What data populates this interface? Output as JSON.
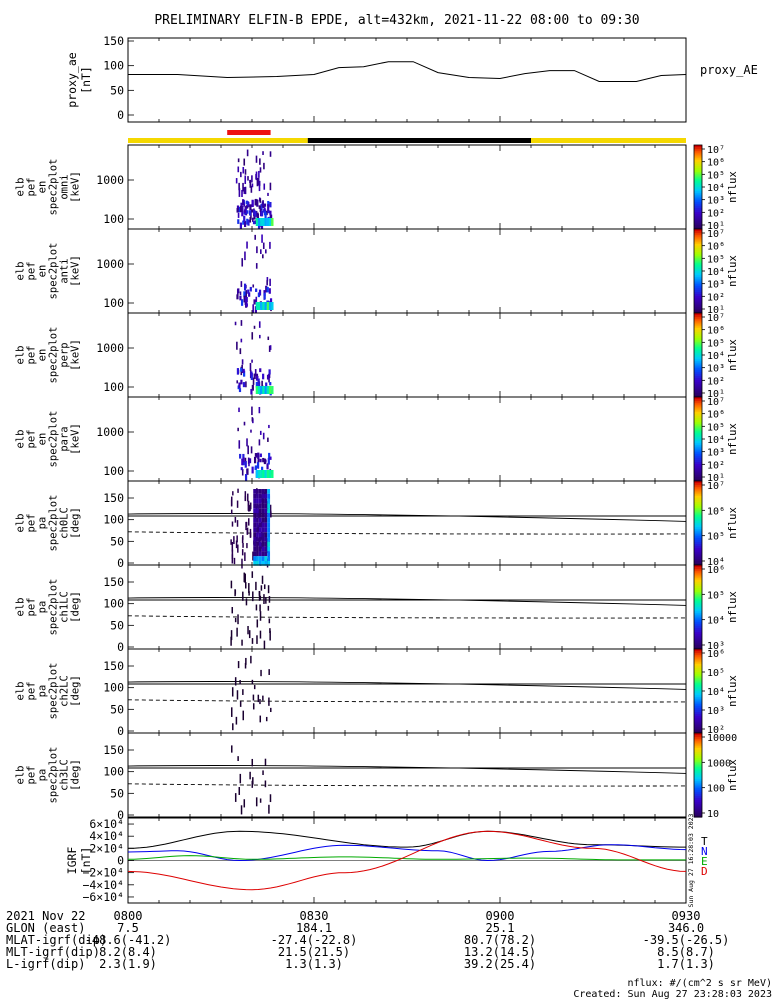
{
  "title": "PRELIMINARY ELFIN-B EPDE, alt=432km, 2021-11-22 08:00 to 09:30",
  "colors": {
    "sunlit": "#f5d800",
    "shadow": "#000000",
    "science_zone": "#ee1111",
    "bx": "#000000",
    "by": "#0000ee",
    "bz": "#00aa00",
    "bt": "#000000",
    "bd": "#dd0000"
  },
  "chart_data": [
    {
      "id": "proxy_ae",
      "type": "line",
      "ylabel": "proxy_ae [nT]",
      "legend": "proxy_AE",
      "ylim": [
        0,
        150
      ],
      "yticks": [
        "150",
        "100",
        "50",
        "0"
      ],
      "x_min": [
        0,
        8,
        16,
        24,
        30,
        34,
        38,
        42,
        46,
        50,
        55,
        60,
        64,
        68,
        72,
        76,
        82,
        86,
        90
      ],
      "y": [
        82,
        82,
        76,
        78,
        82,
        96,
        98,
        108,
        108,
        86,
        76,
        74,
        84,
        90,
        90,
        68,
        68,
        80,
        82
      ]
    },
    {
      "id": "orbit_bar",
      "type": "bar",
      "segments": [
        {
          "kind": "sunlit",
          "start_min": 0,
          "end_min": 29
        },
        {
          "kind": "shadow",
          "start_min": 29,
          "end_min": 65
        },
        {
          "kind": "sunlit",
          "start_min": 65,
          "end_min": 90
        }
      ],
      "science_zone": {
        "start_min": 16,
        "end_min": 23
      }
    },
    {
      "id": "omni",
      "type": "heatmap",
      "ylabel": [
        "elb",
        "pef",
        "en",
        "spec2plot",
        "omni",
        "[keV]"
      ],
      "yticks": [
        "1000",
        "100"
      ],
      "yscale": "log",
      "colorbar": {
        "label": "nflux",
        "ticks": [
          "10⁷",
          "10⁶",
          "10⁵",
          "10⁴",
          "10³",
          "10²",
          "10¹"
        ]
      },
      "active_window_min": [
        16.5,
        23
      ]
    },
    {
      "id": "anti",
      "type": "heatmap",
      "ylabel": [
        "elb",
        "pef",
        "en",
        "spec2plot",
        "anti",
        "[keV]"
      ],
      "yticks": [
        "1000",
        "100"
      ],
      "yscale": "log",
      "colorbar": {
        "label": "nflux",
        "ticks": [
          "10⁷",
          "10⁶",
          "10⁵",
          "10⁴",
          "10³",
          "10²",
          "10¹"
        ]
      },
      "active_window_min": [
        16.5,
        23
      ]
    },
    {
      "id": "perp",
      "type": "heatmap",
      "ylabel": [
        "elb",
        "pef",
        "en",
        "spec2plot",
        "perp",
        "[keV]"
      ],
      "yticks": [
        "1000",
        "100"
      ],
      "yscale": "log",
      "colorbar": {
        "label": "nflux",
        "ticks": [
          "10⁷",
          "10⁶",
          "10⁵",
          "10⁴",
          "10³",
          "10²",
          "10¹"
        ]
      },
      "active_window_min": [
        16.5,
        23
      ]
    },
    {
      "id": "para",
      "type": "heatmap",
      "ylabel": [
        "elb",
        "pef",
        "en",
        "spec2plot",
        "para",
        "[keV]"
      ],
      "yticks": [
        "1000",
        "100"
      ],
      "yscale": "log",
      "colorbar": {
        "label": "nflux",
        "ticks": [
          "10⁷",
          "10⁶",
          "10⁵",
          "10⁴",
          "10³",
          "10²",
          "10¹"
        ]
      },
      "active_window_min": [
        16.5,
        23
      ]
    },
    {
      "id": "ch0LC",
      "type": "heatmap",
      "ylabel": [
        "elb",
        "pef",
        "pa",
        "spec2plot",
        "ch0LC",
        "[deg]"
      ],
      "yticks": [
        "150",
        "100",
        "50",
        "0"
      ],
      "ylim": [
        0,
        180
      ],
      "colorbar": {
        "label": "nflux",
        "ticks": [
          "10⁷",
          "10⁶",
          "10⁵",
          "10⁴"
        ]
      },
      "loss_cone_deg": [
        67,
        72
      ],
      "anti_loss_cone_deg": [
        113,
        108
      ],
      "active_window_min": [
        16.5,
        23
      ]
    },
    {
      "id": "ch1LC",
      "type": "heatmap",
      "ylabel": [
        "elb",
        "pef",
        "pa",
        "spec2plot",
        "ch1LC",
        "[deg]"
      ],
      "yticks": [
        "150",
        "100",
        "50",
        "0"
      ],
      "ylim": [
        0,
        180
      ],
      "colorbar": {
        "label": "nflux",
        "ticks": [
          "10⁶",
          "10⁵",
          "10⁴",
          "10³"
        ]
      },
      "loss_cone_deg": [
        67,
        72
      ],
      "anti_loss_cone_deg": [
        113,
        108
      ],
      "active_window_min": [
        16.5,
        23
      ]
    },
    {
      "id": "ch2LC",
      "type": "heatmap",
      "ylabel": [
        "elb",
        "pef",
        "pa",
        "spec2plot",
        "ch2LC",
        "[deg]"
      ],
      "yticks": [
        "150",
        "100",
        "50",
        "0"
      ],
      "ylim": [
        0,
        180
      ],
      "colorbar": {
        "label": "nflux",
        "ticks": [
          "10⁶",
          "10⁵",
          "10⁴",
          "10³",
          "10²"
        ]
      },
      "loss_cone_deg": [
        67,
        72
      ],
      "anti_loss_cone_deg": [
        113,
        108
      ],
      "active_window_min": [
        16.5,
        23
      ]
    },
    {
      "id": "ch3LC",
      "type": "heatmap",
      "ylabel": [
        "elb",
        "pef",
        "pa",
        "spec2plot",
        "ch3LC",
        "[deg]"
      ],
      "yticks": [
        "150",
        "100",
        "50",
        "0"
      ],
      "ylim": [
        0,
        180
      ],
      "colorbar": {
        "label": "nflux",
        "ticks": [
          "10000",
          "1000",
          "100",
          "10"
        ]
      },
      "loss_cone_deg": [
        67,
        72
      ],
      "anti_loss_cone_deg": [
        113,
        108
      ],
      "active_window_min": [
        16.5,
        23
      ]
    },
    {
      "id": "igrf",
      "type": "line",
      "ylabel": "IGRF [nT]",
      "ylim": [
        -65000,
        65000
      ],
      "yticks": [
        "6×10⁴",
        "4×10⁴",
        "2×10⁴",
        "0",
        "−2×10⁴",
        "−4×10⁴",
        "−6×10⁴"
      ],
      "ytick_values": [
        60000,
        40000,
        20000,
        0,
        -20000,
        -40000,
        -60000
      ],
      "legend": [
        "T",
        "N",
        "E",
        "D"
      ],
      "side_label": "Sun Aug 27 16:28:03 2023",
      "series": [
        {
          "name": "T",
          "x_min": [
            0,
            18,
            45,
            58,
            75,
            90
          ],
          "y": [
            20000,
            48000,
            22000,
            48000,
            26000,
            22000
          ]
        },
        {
          "name": "N",
          "x_min": [
            0,
            8,
            18,
            35,
            50,
            58,
            68,
            78,
            90
          ],
          "y": [
            14000,
            16000,
            0,
            25000,
            16000,
            0,
            15000,
            26000,
            18000
          ]
        },
        {
          "name": "E",
          "x_min": [
            0,
            10,
            20,
            35,
            50,
            65,
            80,
            90
          ],
          "y": [
            2000,
            8000,
            2000,
            6000,
            2000,
            4000,
            1000,
            1000
          ]
        },
        {
          "name": "D",
          "x_min": [
            0,
            20,
            35,
            58,
            75,
            90
          ],
          "y": [
            -18000,
            -48000,
            -20000,
            48000,
            20000,
            -18000
          ]
        }
      ]
    }
  ],
  "xaxis": {
    "date": "2021 Nov 22",
    "ticks": [
      "0800",
      "0830",
      "0900",
      "0930"
    ],
    "tick_min": [
      0,
      30,
      60,
      90
    ],
    "rows": [
      {
        "label": "GLON (east)",
        "values": [
          "7.5",
          "184.1",
          "25.1",
          "346.0"
        ]
      },
      {
        "label": "MLAT-igrf(dip)",
        "values": [
          "-48.6(-41.2)",
          "-27.4(-22.8)",
          "80.7(78.2)",
          "-39.5(-26.5)"
        ]
      },
      {
        "label": "MLT-igrf(dip)",
        "values": [
          "8.2(8.4)",
          "21.5(21.5)",
          "13.2(14.5)",
          "8.5(8.7)"
        ]
      },
      {
        "label": "L-igrf(dip)",
        "values": [
          "2.3(1.9)",
          "1.3(1.3)",
          "39.2(25.4)",
          "1.7(1.3)"
        ]
      }
    ]
  },
  "footer": {
    "units": "nflux: #/(cm^2 s sr MeV)",
    "created": "Created: Sun Aug 27 23:28:03 2023"
  }
}
